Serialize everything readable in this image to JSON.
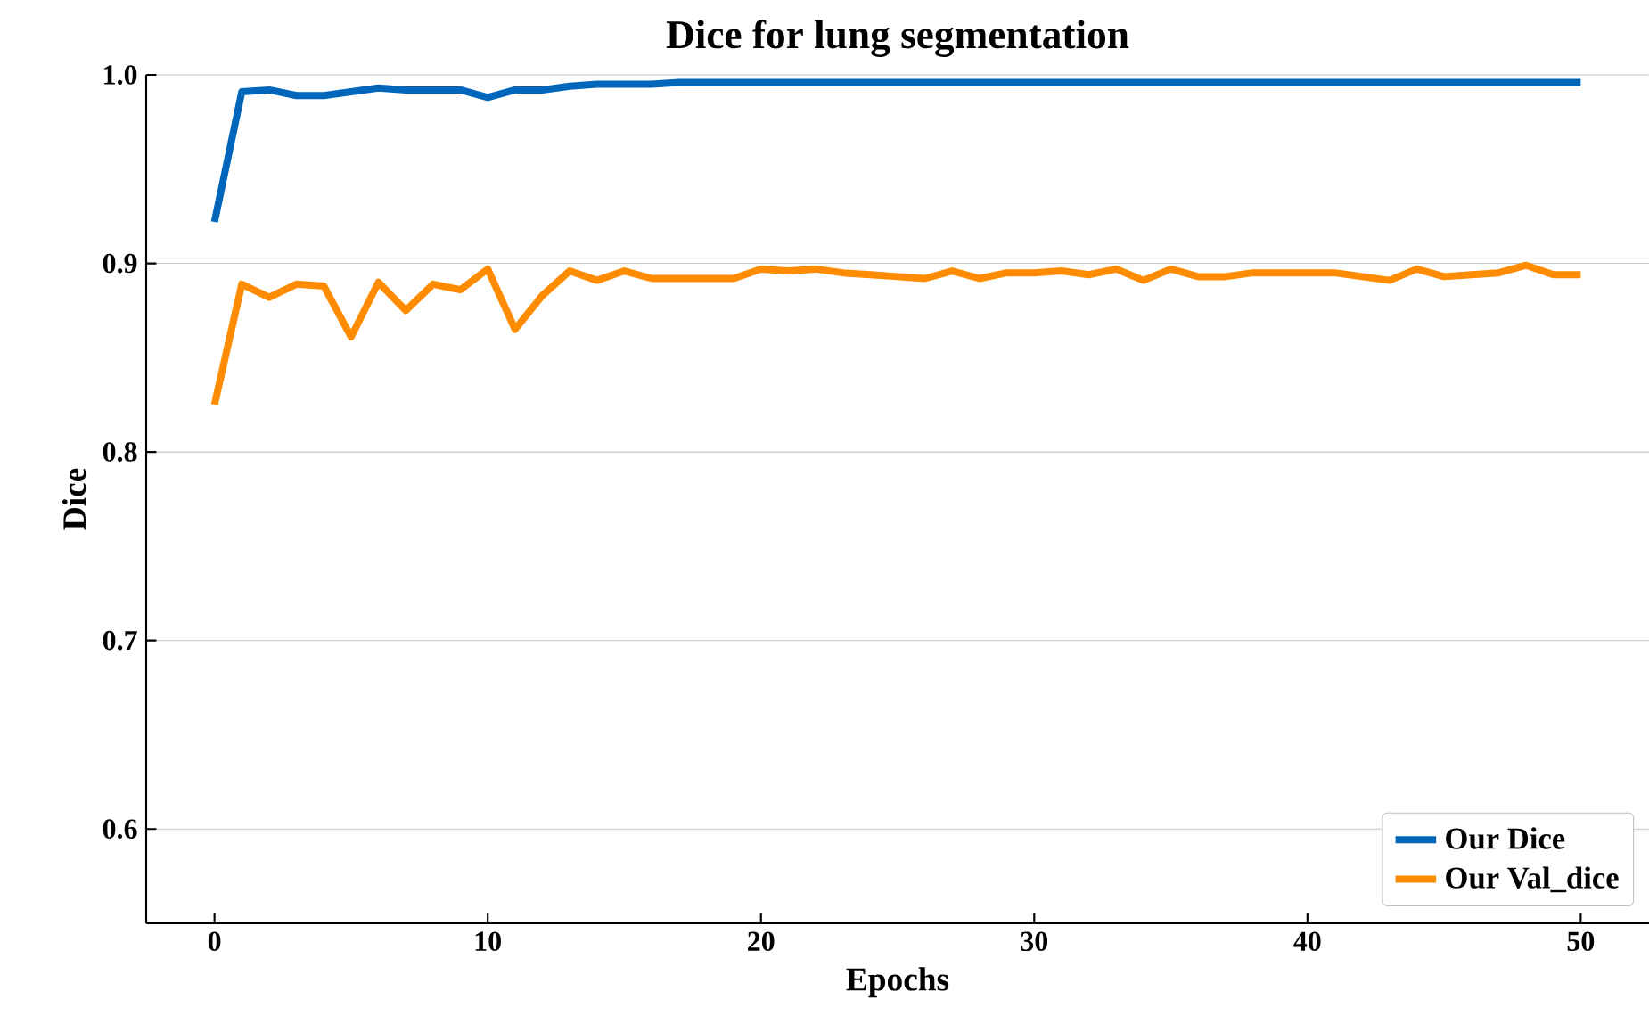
{
  "chart_data": {
    "type": "line",
    "title": "Dice for lung segmentation",
    "xlabel": "Epochs",
    "ylabel": "Dice",
    "x": [
      0,
      1,
      2,
      3,
      4,
      5,
      6,
      7,
      8,
      9,
      10,
      11,
      12,
      13,
      14,
      15,
      16,
      17,
      18,
      19,
      20,
      21,
      22,
      23,
      24,
      25,
      26,
      27,
      28,
      29,
      30,
      31,
      32,
      33,
      34,
      35,
      36,
      37,
      38,
      39,
      40,
      41,
      42,
      43,
      44,
      45,
      46,
      47,
      48,
      49,
      50
    ],
    "series": [
      {
        "name": "Our Dice",
        "color": "#0066bb",
        "values": [
          0.922,
          0.991,
          0.992,
          0.989,
          0.989,
          0.991,
          0.993,
          0.992,
          0.992,
          0.992,
          0.988,
          0.992,
          0.992,
          0.994,
          0.995,
          0.995,
          0.995,
          0.996,
          0.996,
          0.996,
          0.996,
          0.996,
          0.996,
          0.996,
          0.996,
          0.996,
          0.996,
          0.996,
          0.996,
          0.996,
          0.996,
          0.996,
          0.996,
          0.996,
          0.996,
          0.996,
          0.996,
          0.996,
          0.996,
          0.996,
          0.996,
          0.996,
          0.996,
          0.996,
          0.996,
          0.996,
          0.996,
          0.996,
          0.996,
          0.996,
          0.996
        ]
      },
      {
        "name": "Our Val_dice",
        "color": "#ff8c00",
        "values": [
          0.825,
          0.889,
          0.882,
          0.889,
          0.888,
          0.861,
          0.89,
          0.875,
          0.889,
          0.886,
          0.897,
          0.865,
          0.883,
          0.896,
          0.891,
          0.896,
          0.892,
          0.892,
          0.892,
          0.892,
          0.897,
          0.896,
          0.897,
          0.895,
          0.894,
          0.893,
          0.892,
          0.896,
          0.892,
          0.895,
          0.895,
          0.896,
          0.894,
          0.897,
          0.891,
          0.897,
          0.893,
          0.893,
          0.895,
          0.895,
          0.895,
          0.895,
          0.893,
          0.891,
          0.897,
          0.893,
          0.894,
          0.895,
          0.899,
          0.894,
          0.894
        ]
      }
    ],
    "xlim": [
      -2.5,
      52.5
    ],
    "ylim": [
      0.55,
      1.0
    ],
    "xticks": [
      0,
      10,
      20,
      30,
      40,
      50
    ],
    "yticks": [
      {
        "value": 0.6,
        "label": "0.6"
      },
      {
        "value": 0.7,
        "label": "0.7"
      },
      {
        "value": 0.8,
        "label": "0.8"
      },
      {
        "value": 0.9,
        "label": "0.9"
      },
      {
        "value": 1.0,
        "label": "1.0"
      }
    ],
    "grid": "y",
    "legend": "bottom right",
    "marker": "none",
    "line_style": "solid"
  }
}
